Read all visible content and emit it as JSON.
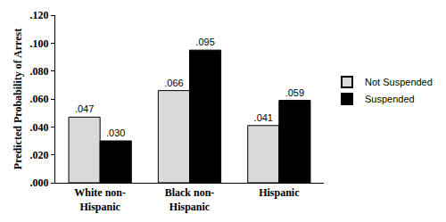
{
  "chart_data": {
    "type": "bar",
    "y_label": "Predicted Probability of Arrest",
    "categories": [
      "White non-Hispanic",
      "Black non-Hispanic",
      "Hispanic"
    ],
    "series": [
      {
        "name": "Not Suspended",
        "color": "#d9d9d9",
        "values": [
          0.047,
          0.066,
          0.041
        ],
        "value_labels": [
          ".047",
          ".066",
          ".041"
        ]
      },
      {
        "name": "Suspended",
        "color": "#000000",
        "values": [
          0.03,
          0.095,
          0.059
        ],
        "value_labels": [
          ".030",
          ".095",
          ".059"
        ]
      }
    ],
    "ylim": [
      0,
      0.12
    ],
    "yticks": [
      {
        "value": 0,
        "label": ".000"
      },
      {
        "value": 0.02,
        "label": ".020"
      },
      {
        "value": 0.04,
        "label": ".040"
      },
      {
        "value": 0.06,
        "label": ".060"
      },
      {
        "value": 0.08,
        "label": ".080"
      },
      {
        "value": 0.1,
        "label": ".100"
      },
      {
        "value": 0.12,
        "label": ".120"
      }
    ],
    "grid": false,
    "legend": "right",
    "data_labels": true
  }
}
